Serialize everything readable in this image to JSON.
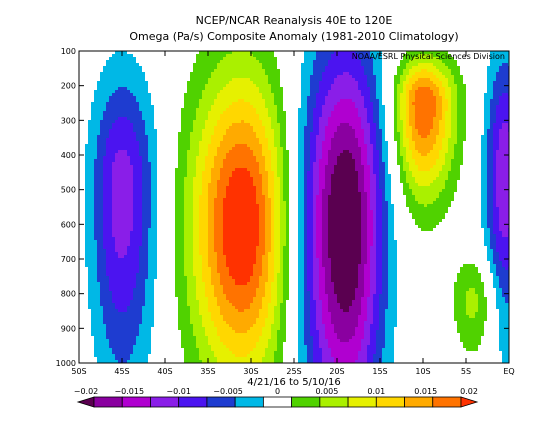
{
  "chart_data": {
    "type": "heatmap",
    "title": "NCEP/NCAR Reanalysis 40E to 120E",
    "subtitle": "Omega (Pa/s) Composite Anomaly (1981-2010 Climatology)",
    "credit": "NOAA/ESRL Physical Sciences Division",
    "xlabel": "4/21/16  to 5/10/16",
    "ylabel": "",
    "x_ticks": [
      "50S",
      "45S",
      "40S",
      "35S",
      "30S",
      "25S",
      "20S",
      "15S",
      "10S",
      "5S",
      "EQ"
    ],
    "x_values": [
      -50,
      -45,
      -40,
      -35,
      -30,
      -25,
      -20,
      -15,
      -10,
      -5,
      0
    ],
    "y_ticks": [
      "100",
      "200",
      "300",
      "400",
      "500",
      "600",
      "700",
      "800",
      "900",
      "1000"
    ],
    "y_values": [
      100,
      200,
      300,
      400,
      500,
      600,
      700,
      800,
      900,
      1000
    ],
    "xlim": [
      -50,
      0
    ],
    "ylim": [
      1000,
      100
    ],
    "y_reversed": true,
    "colorbar": {
      "levels": [
        -0.02,
        -0.0175,
        -0.015,
        -0.0125,
        -0.01,
        -0.0075,
        -0.005,
        -0.0025,
        0.0025,
        0.005,
        0.0075,
        0.01,
        0.0125,
        0.015,
        0.0175,
        0.02
      ],
      "tick_values": [
        -0.02,
        -0.015,
        -0.01,
        -0.005,
        0,
        0.005,
        0.01,
        0.015,
        0.02
      ],
      "tick_labels": [
        "−0.02",
        "−0.015",
        "−0.01",
        "−0.005",
        "0",
        "0.005",
        "0.01",
        "0.015",
        "0.02"
      ],
      "colors": [
        "#5a0050",
        "#8a00a0",
        "#b000d0",
        "#8a1ee8",
        "#4b14f0",
        "#1e3cd0",
        "#00b8e6",
        "#ffffff",
        "#50d200",
        "#aaf000",
        "#e6f000",
        "#ffd700",
        "#ffaa00",
        "#ff7300",
        "#ff3200"
      ]
    },
    "anomaly_features": [
      {
        "name": "sinking",
        "lat": -45,
        "p": 500,
        "value": -0.0115
      },
      {
        "name": "rising",
        "lat": -31,
        "p": 600,
        "value": 0.0205
      },
      {
        "name": "sinking",
        "lat": -19,
        "p": 600,
        "value": -0.021
      },
      {
        "name": "rising",
        "lat": -10,
        "p": 250,
        "value": 0.0175
      },
      {
        "name": "rising",
        "lat": -4,
        "p": 820,
        "value": 0.006
      },
      {
        "name": "sinking",
        "lat": -0.5,
        "p": 450,
        "value": -0.012
      }
    ]
  }
}
